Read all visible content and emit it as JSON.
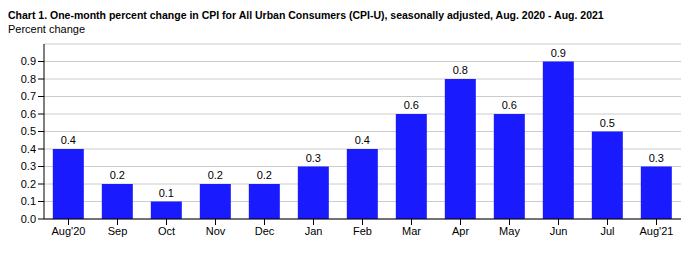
{
  "chart_data": {
    "type": "bar",
    "title": "Chart 1. One-month percent change in CPI for All Urban Consumers (CPI-U), seasonally adjusted, Aug. 2020 - Aug. 2021",
    "subtitle": "Percent change",
    "categories": [
      "Aug'20",
      "Sep",
      "Oct",
      "Nov",
      "Dec",
      "Jan",
      "Feb",
      "Mar",
      "Apr",
      "May",
      "Jun",
      "Jul",
      "Aug'21"
    ],
    "values": [
      0.4,
      0.2,
      0.1,
      0.2,
      0.2,
      0.3,
      0.4,
      0.6,
      0.8,
      0.6,
      0.9,
      0.5,
      0.3
    ],
    "color": "#1a1aff",
    "ylim": [
      0,
      1.0
    ],
    "yticks": [
      {
        "value": 0,
        "label": "0.0"
      },
      0.1,
      0.2,
      0.3,
      0.4,
      0.5,
      0.6,
      0.7,
      0.8,
      0.9
    ],
    "grid": true,
    "data_labels": true
  }
}
